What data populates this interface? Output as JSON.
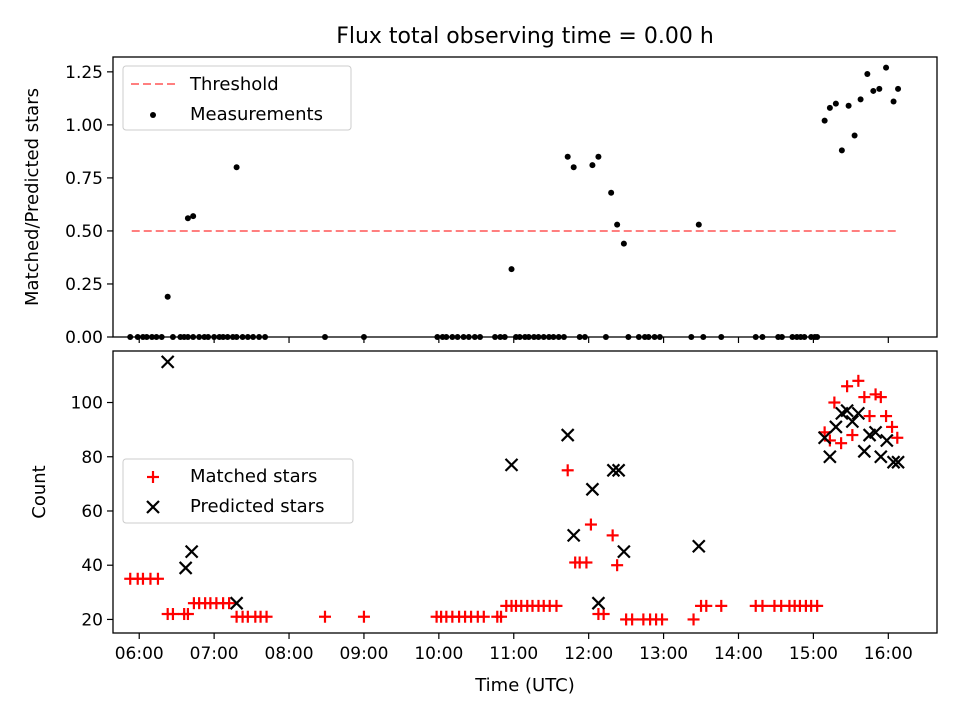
{
  "title": "Flux total observing time = 0.00 h",
  "xlabel": "Time (UTC)",
  "x_ticks": [
    "06:00",
    "07:00",
    "08:00",
    "09:00",
    "10:00",
    "11:00",
    "12:00",
    "13:00",
    "14:00",
    "15:00",
    "16:00"
  ],
  "chart_data": [
    {
      "type": "scatter",
      "ylabel": "Matched/Predicted stars",
      "xlim": [
        5.65,
        16.65
      ],
      "ylim": [
        0,
        1.32
      ],
      "y_ticks": [
        "0.00",
        "0.25",
        "0.50",
        "0.75",
        "1.00",
        "1.25"
      ],
      "y_tick_values": [
        0,
        0.25,
        0.5,
        0.75,
        1.0,
        1.25
      ],
      "legend_position": "upper left",
      "series": [
        {
          "name": "Threshold",
          "style": "dashed-line",
          "color": "#ff7f7f",
          "x": [
            5.9,
            16.15
          ],
          "y": [
            0.5,
            0.5
          ]
        },
        {
          "name": "Measurements",
          "style": "dot",
          "color": "#000000",
          "x": [
            5.88,
            5.98,
            6.05,
            6.1,
            6.17,
            6.23,
            6.3,
            6.45,
            6.55,
            6.6,
            6.65,
            6.72,
            6.8,
            6.87,
            6.92,
            7.0,
            7.07,
            7.12,
            7.18,
            7.25,
            7.3,
            7.38,
            7.45,
            7.52,
            7.6,
            7.68,
            8.48,
            9.0,
            9.98,
            10.05,
            10.1,
            10.18,
            10.25,
            10.33,
            10.4,
            10.48,
            10.55,
            10.75,
            10.82,
            10.88,
            11.03,
            11.08,
            11.15,
            11.2,
            11.27,
            11.33,
            11.4,
            11.47,
            11.53,
            11.6,
            11.67,
            11.88,
            11.95,
            12.23,
            12.53,
            12.67,
            12.75,
            12.8,
            12.88,
            12.95,
            13.37,
            13.53,
            13.77,
            14.23,
            14.32,
            14.53,
            14.58,
            14.72,
            14.78,
            14.83,
            14.88,
            14.97,
            15.02,
            15.05,
            6.38,
            6.65,
            6.72,
            7.3,
            10.97,
            11.72,
            11.8,
            12.05,
            12.13,
            12.3,
            12.38,
            12.47,
            13.47,
            15.15,
            15.22,
            15.3,
            15.38,
            15.47,
            15.55,
            15.63,
            15.72,
            15.8,
            15.88,
            15.97,
            16.07,
            16.13
          ],
          "y": [
            0,
            0,
            0,
            0,
            0,
            0,
            0,
            0,
            0,
            0,
            0,
            0,
            0,
            0,
            0,
            0,
            0,
            0,
            0,
            0,
            0,
            0,
            0,
            0,
            0,
            0,
            0,
            0,
            0,
            0,
            0,
            0,
            0,
            0,
            0,
            0,
            0,
            0,
            0,
            0,
            0,
            0,
            0,
            0,
            0,
            0,
            0,
            0,
            0,
            0,
            0,
            0,
            0,
            0,
            0,
            0,
            0,
            0,
            0,
            0,
            0,
            0,
            0,
            0,
            0,
            0,
            0,
            0,
            0,
            0,
            0,
            0,
            0,
            0,
            0.19,
            0.56,
            0.57,
            0.8,
            0.32,
            0.85,
            0.8,
            0.81,
            0.85,
            0.68,
            0.53,
            0.44,
            0.53,
            1.02,
            1.08,
            1.1,
            0.88,
            1.09,
            0.95,
            1.12,
            1.24,
            1.16,
            1.17,
            1.27,
            1.11,
            1.17
          ]
        }
      ]
    },
    {
      "type": "scatter",
      "ylabel": "Count",
      "xlim": [
        5.65,
        16.65
      ],
      "ylim": [
        15,
        119
      ],
      "y_ticks": [
        "20",
        "40",
        "60",
        "80",
        "100"
      ],
      "y_tick_values": [
        20,
        40,
        60,
        80,
        100
      ],
      "legend_position": "center left",
      "series": [
        {
          "name": "Matched stars",
          "marker": "plus",
          "color": "#ff0000",
          "x": [
            5.88,
            5.98,
            6.05,
            6.15,
            6.25,
            6.38,
            6.45,
            6.6,
            6.65,
            6.73,
            6.8,
            6.88,
            6.95,
            7.03,
            7.12,
            7.2,
            7.3,
            7.38,
            7.45,
            7.55,
            7.62,
            7.7,
            8.48,
            9.0,
            9.97,
            10.03,
            10.1,
            10.18,
            10.27,
            10.35,
            10.43,
            10.52,
            10.6,
            10.78,
            10.83,
            10.9,
            10.97,
            11.03,
            11.1,
            11.18,
            11.25,
            11.33,
            11.4,
            11.48,
            11.57,
            11.72,
            11.82,
            11.88,
            11.97,
            12.03,
            12.13,
            12.2,
            12.32,
            12.38,
            12.5,
            12.58,
            12.73,
            12.82,
            12.9,
            12.98,
            13.4,
            13.5,
            13.57,
            13.77,
            14.23,
            14.32,
            14.48,
            14.57,
            14.68,
            14.75,
            14.82,
            14.9,
            14.97,
            15.05,
            15.15,
            15.22,
            15.28,
            15.37,
            15.45,
            15.52,
            15.6,
            15.68,
            15.75,
            15.83,
            15.9,
            15.97,
            16.05,
            16.12
          ],
          "y": [
            35,
            35,
            35,
            35,
            35,
            22,
            22,
            22,
            22,
            26,
            26,
            26,
            26,
            26,
            26,
            26,
            21,
            21,
            21,
            21,
            21,
            21,
            21,
            21,
            21,
            21,
            21,
            21,
            21,
            21,
            21,
            21,
            21,
            21,
            21,
            25,
            25,
            25,
            25,
            25,
            25,
            25,
            25,
            25,
            25,
            75,
            41,
            41,
            41,
            55,
            22,
            22,
            51,
            40,
            20,
            20,
            20,
            20,
            20,
            20,
            20,
            25,
            25,
            25,
            25,
            25,
            25,
            25,
            25,
            25,
            25,
            25,
            25,
            25,
            89,
            86,
            100,
            85,
            106,
            88,
            108,
            102,
            95,
            103,
            102,
            95,
            91,
            87
          ]
        },
        {
          "name": "Predicted stars",
          "marker": "x",
          "color": "#000000",
          "x": [
            6.38,
            6.62,
            6.7,
            7.3,
            10.97,
            11.72,
            11.8,
            12.05,
            12.13,
            12.33,
            12.4,
            12.47,
            13.47,
            15.15,
            15.22,
            15.3,
            15.38,
            15.45,
            15.52,
            15.6,
            15.68,
            15.75,
            15.83,
            15.9,
            15.98,
            16.07,
            16.13
          ],
          "y": [
            115,
            39,
            45,
            26,
            77,
            88,
            51,
            68,
            26,
            75,
            75,
            45,
            47,
            87,
            80,
            91,
            96,
            97,
            93,
            96,
            82,
            88,
            89,
            80,
            86,
            78,
            78
          ]
        }
      ]
    }
  ]
}
